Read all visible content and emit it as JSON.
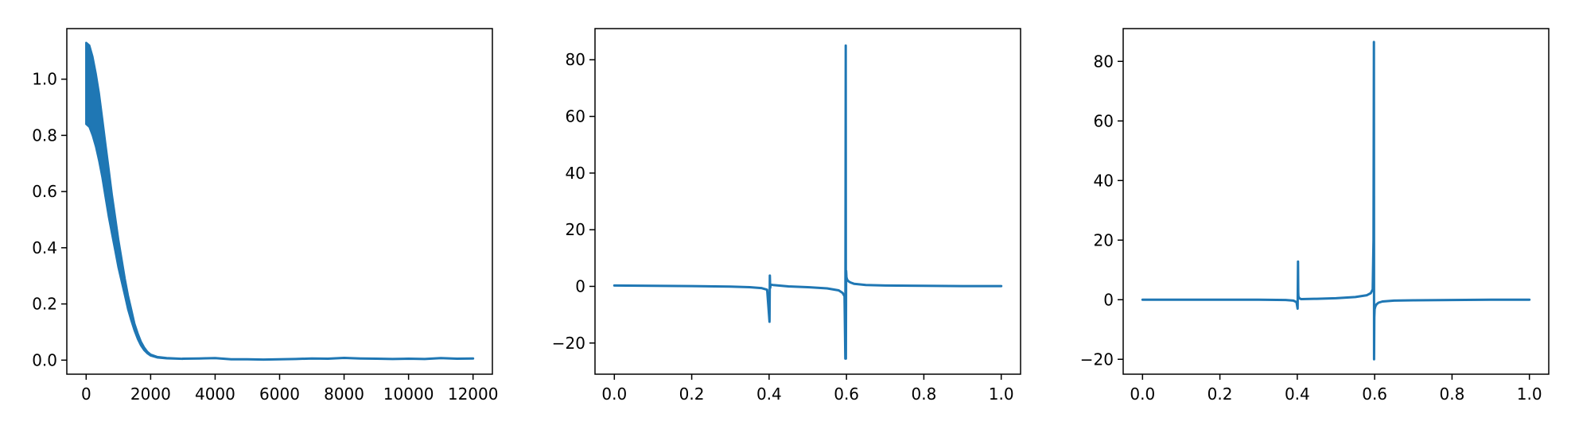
{
  "line_color": "#1f77b4",
  "chart_data": [
    {
      "type": "line",
      "name": "loss-curve",
      "xlim": [
        -600,
        12600
      ],
      "ylim": [
        -0.05,
        1.18
      ],
      "x_ticks": [
        0,
        2000,
        4000,
        6000,
        8000,
        10000,
        12000
      ],
      "x_tick_labels": [
        "0",
        "2000",
        "4000",
        "6000",
        "8000",
        "10000",
        "12000"
      ],
      "y_ticks": [
        0.0,
        0.2,
        0.4,
        0.6,
        0.8,
        1.0
      ],
      "y_tick_labels": [
        "0.0",
        "0.2",
        "0.4",
        "0.6",
        "0.8",
        "1.0"
      ],
      "band_upper": [
        [
          0,
          1.13
        ],
        [
          100,
          1.12
        ],
        [
          200,
          1.08
        ],
        [
          300,
          1.02
        ],
        [
          400,
          0.95
        ],
        [
          500,
          0.86
        ],
        [
          600,
          0.77
        ],
        [
          700,
          0.68
        ],
        [
          800,
          0.59
        ],
        [
          900,
          0.51
        ],
        [
          1000,
          0.43
        ],
        [
          1100,
          0.36
        ],
        [
          1200,
          0.29
        ],
        [
          1300,
          0.23
        ],
        [
          1400,
          0.18
        ],
        [
          1500,
          0.13
        ],
        [
          1600,
          0.095
        ],
        [
          1700,
          0.066
        ],
        [
          1800,
          0.045
        ],
        [
          1900,
          0.03
        ],
        [
          2000,
          0.02
        ],
        [
          2200,
          0.012
        ],
        [
          2500,
          0.008
        ],
        [
          3000,
          0.005
        ]
      ],
      "band_lower": [
        [
          0,
          0.84
        ],
        [
          100,
          0.83
        ],
        [
          200,
          0.8
        ],
        [
          300,
          0.76
        ],
        [
          400,
          0.71
        ],
        [
          500,
          0.65
        ],
        [
          600,
          0.58
        ],
        [
          700,
          0.51
        ],
        [
          800,
          0.45
        ],
        [
          900,
          0.39
        ],
        [
          1000,
          0.33
        ],
        [
          1100,
          0.28
        ],
        [
          1200,
          0.23
        ],
        [
          1300,
          0.18
        ],
        [
          1400,
          0.14
        ],
        [
          1500,
          0.105
        ],
        [
          1600,
          0.075
        ],
        [
          1700,
          0.052
        ],
        [
          1800,
          0.035
        ],
        [
          1900,
          0.024
        ],
        [
          2000,
          0.016
        ],
        [
          2200,
          0.009
        ],
        [
          2500,
          0.006
        ],
        [
          3000,
          0.004
        ]
      ],
      "x": [
        3000,
        3500,
        4000,
        4500,
        5000,
        5500,
        6000,
        6500,
        7000,
        7500,
        8000,
        8500,
        9000,
        9500,
        10000,
        10500,
        11000,
        11500,
        12000
      ],
      "y": [
        0.005,
        0.006,
        0.007,
        0.003,
        0.003,
        0.002,
        0.003,
        0.004,
        0.006,
        0.005,
        0.008,
        0.006,
        0.005,
        0.004,
        0.005,
        0.004,
        0.007,
        0.005,
        0.006
      ]
    },
    {
      "type": "line",
      "name": "response-1",
      "xlim": [
        -0.05,
        1.05
      ],
      "ylim": [
        -31,
        91
      ],
      "x_ticks": [
        0.0,
        0.2,
        0.4,
        0.6,
        0.8,
        1.0
      ],
      "x_tick_labels": [
        "0.0",
        "0.2",
        "0.4",
        "0.6",
        "0.8",
        "1.0"
      ],
      "y_ticks": [
        -20,
        0,
        20,
        40,
        60,
        80
      ],
      "y_tick_labels": [
        "−20",
        "0",
        "20",
        "40",
        "60",
        "80"
      ],
      "x": [
        0.0,
        0.1,
        0.2,
        0.3,
        0.35,
        0.38,
        0.395,
        0.401,
        0.402,
        0.4025,
        0.403,
        0.404,
        0.41,
        0.45,
        0.5,
        0.55,
        0.58,
        0.59,
        0.595,
        0.597,
        0.598,
        0.5985,
        0.599,
        0.6,
        0.602,
        0.605,
        0.61,
        0.62,
        0.65,
        0.7,
        0.8,
        0.9,
        1.0
      ],
      "y": [
        0.3,
        0.2,
        0.1,
        -0.1,
        -0.3,
        -0.6,
        -1.2,
        -12.5,
        3.8,
        0.8,
        -0.5,
        0.6,
        0.5,
        0.0,
        -0.3,
        -0.7,
        -1.4,
        -2.3,
        -3.5,
        -25.5,
        85.0,
        -25.5,
        5.5,
        3.2,
        2.3,
        1.8,
        1.4,
        0.9,
        0.5,
        0.3,
        0.2,
        0.1,
        0.1
      ]
    },
    {
      "type": "line",
      "name": "response-2",
      "xlim": [
        -0.05,
        1.05
      ],
      "ylim": [
        -25,
        91
      ],
      "x_ticks": [
        0.0,
        0.2,
        0.4,
        0.6,
        0.8,
        1.0
      ],
      "x_tick_labels": [
        "0.0",
        "0.2",
        "0.4",
        "0.6",
        "0.8",
        "1.0"
      ],
      "y_ticks": [
        -20,
        0,
        20,
        40,
        60,
        80
      ],
      "y_tick_labels": [
        "−20",
        "0",
        "20",
        "40",
        "60",
        "80"
      ],
      "x": [
        0.0,
        0.1,
        0.2,
        0.3,
        0.37,
        0.39,
        0.398,
        0.401,
        0.402,
        0.4025,
        0.403,
        0.405,
        0.41,
        0.45,
        0.5,
        0.55,
        0.58,
        0.59,
        0.595,
        0.597,
        0.598,
        0.5985,
        0.599,
        0.6,
        0.602,
        0.605,
        0.61,
        0.62,
        0.65,
        0.7,
        0.8,
        0.9,
        1.0
      ],
      "y": [
        0.0,
        0.0,
        0.0,
        0.0,
        -0.1,
        -0.3,
        -0.8,
        -3.0,
        12.8,
        2.5,
        1.2,
        0.5,
        0.2,
        0.3,
        0.5,
        0.9,
        1.5,
        2.2,
        3.5,
        20.0,
        86.5,
        -20.0,
        -6.0,
        -3.2,
        -2.2,
        -1.5,
        -1.0,
        -0.6,
        -0.3,
        -0.2,
        -0.1,
        0.0,
        0.0
      ]
    }
  ]
}
